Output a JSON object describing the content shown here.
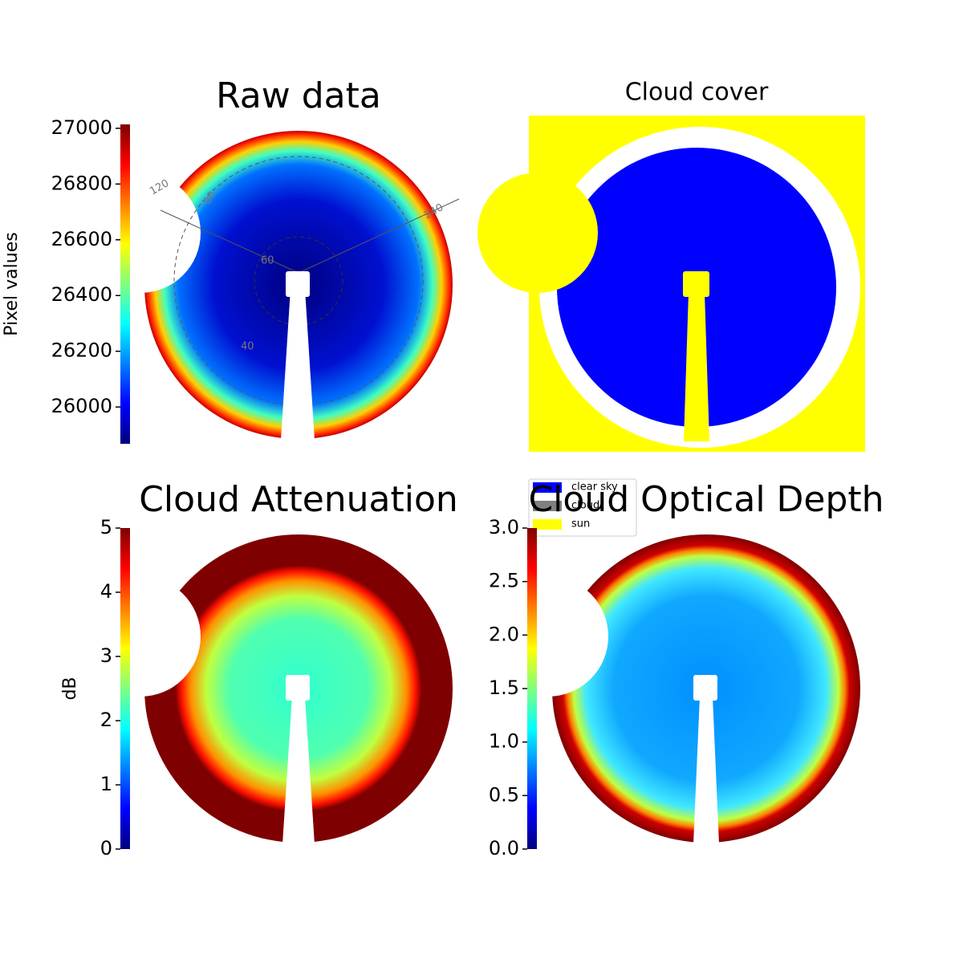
{
  "chart_data": [
    {
      "type": "image",
      "title": "Raw data",
      "colormap": "jet",
      "colorbar": {
        "label": "Pixel values",
        "lim": [
          25868,
          27014
        ],
        "ticks": [
          26000,
          26200,
          26400,
          26600,
          26800,
          27000
        ]
      },
      "annotations": [
        "120",
        "80",
        "240",
        "60",
        "40"
      ]
    },
    {
      "type": "image",
      "title": "Cloud cover",
      "series": [
        {
          "name": "clear sky",
          "color": "#0000ff"
        },
        {
          "name": "cloud",
          "color": "#808080"
        },
        {
          "name": "sun",
          "color": "#ffff00"
        }
      ]
    },
    {
      "type": "image",
      "title": "Cloud Attenuation",
      "colormap": "jet",
      "colorbar": {
        "label": "dB",
        "lim": [
          0,
          5
        ],
        "ticks": [
          0,
          1,
          2,
          3,
          4,
          5
        ]
      }
    },
    {
      "type": "image",
      "title": "Cloud Optical Depth",
      "colormap": "jet",
      "colorbar": {
        "lim": [
          0,
          3
        ],
        "ticks": [
          {
            "value": 0,
            "label": "0.0"
          },
          {
            "value": 0.5,
            "label": "0.5"
          },
          {
            "value": 1,
            "label": "1.0"
          },
          {
            "value": 1.5,
            "label": "1.5"
          },
          {
            "value": 2,
            "label": "2.0"
          },
          {
            "value": 2.5,
            "label": "2.5"
          },
          {
            "value": 3,
            "label": "3.0"
          }
        ]
      }
    }
  ]
}
